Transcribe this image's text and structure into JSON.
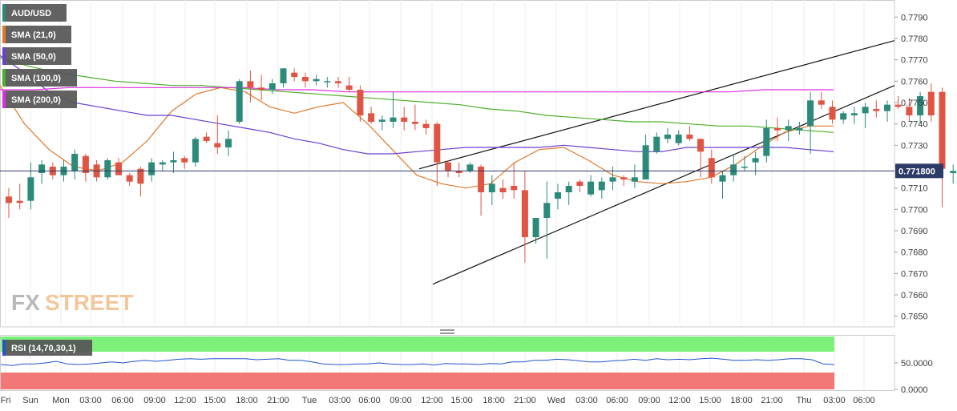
{
  "chart_data": [
    {
      "type": "candlestick",
      "symbol": "AUD/USD",
      "last_price_label": "0.771800",
      "ylim": [
        0.7645,
        0.7798
      ],
      "y_ticks": [
        "0.7790",
        "0.7780",
        "0.7770",
        "0.7760",
        "0.7750",
        "0.7740",
        "0.7730",
        "0.7720",
        "0.7710",
        "0.7700",
        "0.7690",
        "0.7680",
        "0.7670",
        "0.7660",
        "0.7650"
      ],
      "x_ticks": [
        "Fri",
        "Sun",
        "Mon",
        "03:00",
        "06:00",
        "09:00",
        "12:00",
        "15:00",
        "18:00",
        "21:00",
        "Tue",
        "03:00",
        "06:00",
        "09:00",
        "12:00",
        "15:00",
        "18:00",
        "21:00",
        "Wed",
        "03:00",
        "06:00",
        "09:00",
        "12:00",
        "15:00",
        "18:00",
        "21:00",
        "Thu",
        "03:00",
        "06:00"
      ],
      "candles": [
        [
          0.7706,
          0.771,
          0.7696,
          0.7703
        ],
        [
          0.7704,
          0.7712,
          0.77,
          0.7703
        ],
        [
          0.7704,
          0.7722,
          0.77,
          0.7715
        ],
        [
          0.7717,
          0.7723,
          0.7712,
          0.7721
        ],
        [
          0.772,
          0.7722,
          0.7714,
          0.7716
        ],
        [
          0.7716,
          0.7723,
          0.7713,
          0.772
        ],
        [
          0.7718,
          0.7728,
          0.7714,
          0.7726
        ],
        [
          0.7725,
          0.7726,
          0.7713,
          0.7717
        ],
        [
          0.7721,
          0.7723,
          0.7713,
          0.7715
        ],
        [
          0.7715,
          0.7724,
          0.7714,
          0.7723
        ],
        [
          0.7722,
          0.7724,
          0.7716,
          0.7716
        ],
        [
          0.7716,
          0.7717,
          0.7711,
          0.7713
        ],
        [
          0.7719,
          0.772,
          0.7706,
          0.7712
        ],
        [
          0.7716,
          0.7724,
          0.7713,
          0.7722
        ],
        [
          0.7721,
          0.7723,
          0.7718,
          0.7722
        ],
        [
          0.7722,
          0.7727,
          0.7717,
          0.7723
        ],
        [
          0.7724,
          0.7725,
          0.7719,
          0.7722
        ],
        [
          0.7722,
          0.7734,
          0.772,
          0.7733
        ],
        [
          0.7734,
          0.7736,
          0.7731,
          0.7732
        ],
        [
          0.7731,
          0.7744,
          0.7726,
          0.7729
        ],
        [
          0.7729,
          0.7737,
          0.7725,
          0.7733
        ],
        [
          0.7741,
          0.7761,
          0.774,
          0.776
        ],
        [
          0.776,
          0.7765,
          0.775,
          0.7757
        ],
        [
          0.7757,
          0.7763,
          0.7751,
          0.7756
        ],
        [
          0.7756,
          0.7761,
          0.7754,
          0.7759
        ],
        [
          0.7759,
          0.7766,
          0.7757,
          0.7766
        ],
        [
          0.7764,
          0.7766,
          0.776,
          0.7762
        ],
        [
          0.7762,
          0.7764,
          0.7757,
          0.776
        ],
        [
          0.776,
          0.7763,
          0.7758,
          0.7761
        ],
        [
          0.776,
          0.7762,
          0.7757,
          0.776
        ],
        [
          0.776,
          0.7762,
          0.7757,
          0.7759
        ],
        [
          0.7758,
          0.7762,
          0.7755,
          0.7756
        ],
        [
          0.7756,
          0.7758,
          0.7741,
          0.7744
        ],
        [
          0.7745,
          0.7748,
          0.774,
          0.7741
        ],
        [
          0.7741,
          0.7744,
          0.7737,
          0.7742
        ],
        [
          0.7741,
          0.7755,
          0.7738,
          0.7743
        ],
        [
          0.7743,
          0.7748,
          0.7737,
          0.7741
        ],
        [
          0.7741,
          0.7749,
          0.7737,
          0.774
        ],
        [
          0.774,
          0.7742,
          0.7735,
          0.7738
        ],
        [
          0.774,
          0.7741,
          0.7711,
          0.7722
        ],
        [
          0.7722,
          0.7723,
          0.7715,
          0.7718
        ],
        [
          0.7718,
          0.7722,
          0.7715,
          0.7717
        ],
        [
          0.7718,
          0.7722,
          0.7717,
          0.7721
        ],
        [
          0.772,
          0.7721,
          0.7697,
          0.7708
        ],
        [
          0.7708,
          0.7716,
          0.7702,
          0.7712
        ],
        [
          0.771,
          0.7714,
          0.7705,
          0.7708
        ],
        [
          0.7711,
          0.7722,
          0.7705,
          0.7709
        ],
        [
          0.7709,
          0.7718,
          0.7675,
          0.7687
        ],
        [
          0.7687,
          0.7695,
          0.7684,
          0.7696
        ],
        [
          0.7696,
          0.7713,
          0.7677,
          0.7703
        ],
        [
          0.7705,
          0.7712,
          0.77,
          0.7708
        ],
        [
          0.7708,
          0.7713,
          0.7702,
          0.7711
        ],
        [
          0.7713,
          0.7714,
          0.7708,
          0.7711
        ],
        [
          0.7707,
          0.7716,
          0.7706,
          0.7713
        ],
        [
          0.7709,
          0.7715,
          0.7705,
          0.7713
        ],
        [
          0.7713,
          0.772,
          0.7709,
          0.7715
        ],
        [
          0.7715,
          0.7716,
          0.7711,
          0.7714
        ],
        [
          0.7713,
          0.7721,
          0.771,
          0.7715
        ],
        [
          0.7714,
          0.7735,
          0.7714,
          0.773
        ],
        [
          0.7727,
          0.7736,
          0.7726,
          0.7734
        ],
        [
          0.7733,
          0.7738,
          0.7731,
          0.7735
        ],
        [
          0.7731,
          0.7737,
          0.773,
          0.7735
        ],
        [
          0.7735,
          0.7739,
          0.7732,
          0.7733
        ],
        [
          0.7733,
          0.7733,
          0.7715,
          0.7727
        ],
        [
          0.7724,
          0.7728,
          0.7712,
          0.7715
        ],
        [
          0.7713,
          0.7718,
          0.7705,
          0.7716
        ],
        [
          0.7716,
          0.7726,
          0.7713,
          0.7721
        ],
        [
          0.772,
          0.7725,
          0.7718,
          0.772
        ],
        [
          0.7722,
          0.7727,
          0.7716,
          0.7724
        ],
        [
          0.7725,
          0.7742,
          0.7722,
          0.7738
        ],
        [
          0.7738,
          0.7743,
          0.7732,
          0.7737
        ],
        [
          0.7737,
          0.7742,
          0.7732,
          0.7739
        ],
        [
          0.7737,
          0.7741,
          0.7735,
          0.7738
        ],
        [
          0.7739,
          0.7755,
          0.7726,
          0.7751
        ],
        [
          0.7751,
          0.7755,
          0.7747,
          0.7749
        ],
        [
          0.7748,
          0.7751,
          0.774,
          0.7742
        ],
        [
          0.7742,
          0.7746,
          0.774,
          0.7745
        ],
        [
          0.7744,
          0.7748,
          0.774,
          0.7745
        ],
        [
          0.7745,
          0.775,
          0.7738,
          0.7748
        ],
        [
          0.7747,
          0.7751,
          0.7743,
          0.7746
        ],
        [
          0.7746,
          0.7751,
          0.7741,
          0.7749
        ],
        [
          0.7749,
          0.7753,
          0.7747,
          0.7748
        ],
        [
          0.7748,
          0.7752,
          0.7741,
          0.7744
        ],
        [
          0.7744,
          0.7755,
          0.774,
          0.7753
        ],
        [
          0.7755,
          0.7759,
          0.7741,
          0.7744
        ],
        [
          0.7755,
          0.7757,
          0.7701,
          0.7719
        ],
        [
          0.7717,
          0.7721,
          0.7712,
          0.7718
        ]
      ],
      "sma": [
        {
          "name": "SMA (21,0)",
          "color": "#e0782a",
          "values": [
            0.7758,
            0.774,
            0.7728,
            0.772,
            0.7718,
            0.7722,
            0.7732,
            0.7746,
            0.7754,
            0.7757,
            0.7755,
            0.7748,
            0.7745,
            0.7748,
            0.775,
            0.774,
            0.7728,
            0.7716,
            0.7712,
            0.771,
            0.7712,
            0.7722,
            0.7728,
            0.7729,
            0.7723,
            0.7716,
            0.7713,
            0.7712,
            0.7713,
            0.7715,
            0.7721,
            0.7729,
            0.7736,
            0.7739,
            0.7739
          ]
        },
        {
          "name": "SMA (50,0)",
          "color": "#6a3fd1",
          "values": [
            0.7772,
            0.7764,
            0.7755,
            0.775,
            0.7748,
            0.7746,
            0.7744,
            0.7744,
            0.7742,
            0.774,
            0.7738,
            0.7736,
            0.7733,
            0.7731,
            0.7728,
            0.7726,
            0.7726,
            0.7727,
            0.7728,
            0.7729,
            0.7729,
            0.7729,
            0.7729,
            0.773,
            0.7729,
            0.7728,
            0.7727,
            0.7727,
            0.7729,
            0.7729,
            0.7729,
            0.7729,
            0.7729,
            0.7728,
            0.7727
          ]
        },
        {
          "name": "SMA (100,0)",
          "color": "#4caf2a",
          "values": [
            0.7771,
            0.7767,
            0.7764,
            0.7762,
            0.776,
            0.7759,
            0.7758,
            0.7758,
            0.7757,
            0.7756,
            0.7755,
            0.7754,
            0.7753,
            0.7752,
            0.7751,
            0.775,
            0.7749,
            0.7747,
            0.7746,
            0.7744,
            0.7743,
            0.7742,
            0.7741,
            0.7741,
            0.774,
            0.7739,
            0.7739,
            0.7738,
            0.7737,
            0.7736
          ]
        },
        {
          "name": "SMA (200,0)",
          "color": "#e02ce0",
          "values": [
            0.7756,
            0.7756,
            0.7757,
            0.7757,
            0.7757,
            0.7757,
            0.7757,
            0.7757,
            0.7756,
            0.7756,
            0.7755,
            0.7755,
            0.7755,
            0.7755,
            0.7755,
            0.7755,
            0.7755,
            0.7755,
            0.7755,
            0.7755,
            0.7755,
            0.7755,
            0.7756,
            0.7756,
            0.7756
          ]
        }
      ],
      "trendlines": [
        {
          "from": [
            "Tue 09:00",
            0.7719
          ],
          "to": [
            "Thu 06:00",
            0.7779
          ]
        },
        {
          "from": [
            "Tue 12:00",
            0.7665
          ],
          "to": [
            "Thu 06:00",
            0.7758
          ]
        }
      ]
    },
    {
      "type": "line",
      "indicator": "RSI (14,70,30,1)",
      "y_ticks": [
        "50.0000",
        "0.0000"
      ],
      "overbought_color": "#7df07a",
      "oversold_color": "#f27777",
      "values": [
        47,
        45,
        48,
        48,
        50,
        53,
        48,
        47,
        48,
        50,
        52,
        50,
        53,
        55,
        53,
        55,
        57,
        58,
        57,
        58,
        58,
        58,
        58,
        56,
        57,
        58,
        55,
        55,
        52,
        48,
        47,
        47,
        48,
        48,
        50,
        48,
        47,
        47,
        48,
        46,
        49,
        48,
        48,
        47,
        49,
        48,
        52,
        52,
        55,
        55,
        57,
        56,
        54,
        52,
        52,
        54,
        55,
        57,
        55,
        58,
        56,
        57,
        56,
        58,
        59,
        57,
        55,
        55,
        56,
        55,
        56,
        58,
        58,
        56,
        48,
        47
      ]
    }
  ],
  "branding": {
    "fx": "FX",
    "street": "STREET"
  },
  "colors": {
    "bull": "#2c8a7a",
    "bear": "#e05444",
    "axis": "#cccccc",
    "price_line": "#2b3a67"
  }
}
